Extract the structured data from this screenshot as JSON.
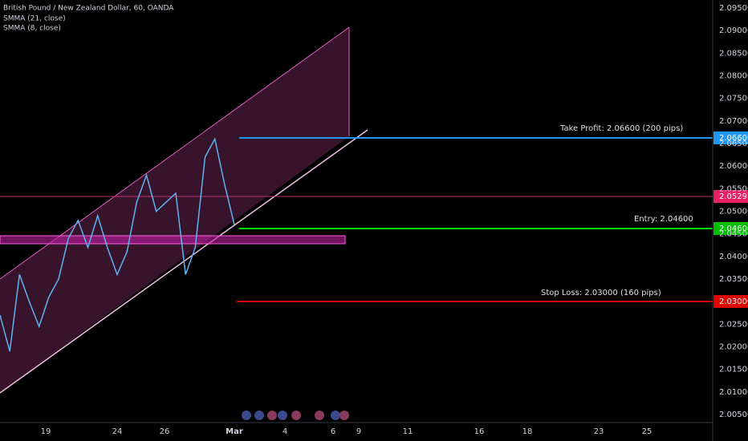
{
  "header": {
    "title": "British Pound / New Zealand Dollar, 60, OANDA",
    "indicators": [
      "SMMA (21, close)",
      "SMMA (8, close)"
    ]
  },
  "price_axis": [
    "2.09500",
    "2.09000",
    "2.08500",
    "2.08000",
    "2.07500",
    "2.07000",
    "2.06500",
    "2.06000",
    "2.05500",
    "2.05000",
    "2.04500",
    "2.04000",
    "2.03500",
    "2.03000",
    "2.02500",
    "2.02000",
    "2.01500",
    "2.01000",
    "2.00500"
  ],
  "time_axis": [
    "19",
    "24",
    "26",
    "Mar",
    "4",
    "6",
    "9",
    "11",
    "16",
    "18",
    "23",
    "25"
  ],
  "price_closes": [
    2.027,
    2.019,
    2.036,
    2.03,
    2.0245,
    2.031,
    2.035,
    2.044,
    2.048,
    2.042,
    2.049,
    2.042,
    2.036,
    2.041,
    2.052,
    2.058,
    2.05,
    2.052,
    2.054,
    2.036,
    2.042,
    2.062,
    2.066,
    2.056,
    2.047
  ],
  "levels": {
    "take_profit": {
      "label": "Take Profit: 2.06600 (200 pips)",
      "badge": "2.06600"
    },
    "current": {
      "badge": "2.05291"
    },
    "entry": {
      "label": "Entry: 2.04600",
      "badge": "2.04600"
    },
    "stop_loss": {
      "label": "Stop Loss: 2.03000",
      "pips": "(160 pips)",
      "badge": "2.03000"
    }
  }
}
